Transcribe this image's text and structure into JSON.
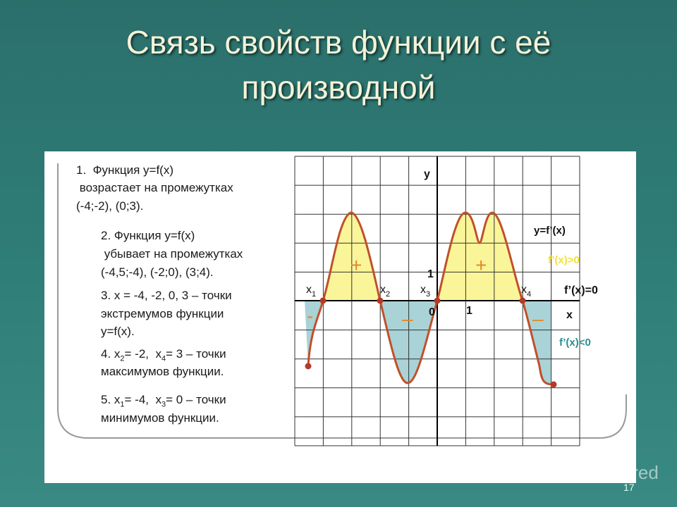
{
  "title": [
    "Связь свойств функции с её",
    "производной"
  ],
  "notes": [
    [
      [
        {
          "text": "1.  Функция y=f(x)"
        }
      ],
      [
        {
          "text": " возрастает на промежутках"
        }
      ],
      [
        {
          "text": "(-4;-2), (0;3)."
        }
      ]
    ],
    [
      [
        {
          "text": "2. Функция y=f(x)"
        }
      ],
      [
        {
          "text": " убывает на промежутках"
        }
      ],
      [
        {
          "text": "(-4,5;-4), (-2;0), (3;4)."
        }
      ]
    ],
    [
      [
        {
          "text": "3. x = -4, -2, 0, 3 – точки"
        }
      ],
      [
        {
          "text": "экстремумов функции"
        }
      ],
      [
        {
          "text": "y=f(x)."
        }
      ]
    ],
    [
      [
        {
          "text": "4. x"
        },
        {
          "sub": "2"
        },
        {
          "text": "= -2,  x"
        },
        {
          "sub": "4"
        },
        {
          "text": "= 3 – точки"
        }
      ],
      [
        {
          "text": "максимумов функции."
        }
      ]
    ],
    [
      [
        {
          "text": "5. x"
        },
        {
          "sub": "1"
        },
        {
          "text": "= -4,  x"
        },
        {
          "sub": "3"
        },
        {
          "text": "= 0 – точки"
        }
      ],
      [
        {
          "text": "минимумов функции."
        }
      ]
    ]
  ],
  "graph": {
    "axis_y": "y",
    "axis_x": "x",
    "unit_y": "1",
    "unit_x": "1",
    "origin": "0",
    "points": [
      {
        "text": "x",
        "sub": "1"
      },
      {
        "text": "x",
        "sub": "2"
      },
      {
        "text": "x",
        "sub": "3"
      },
      {
        "text": "x",
        "sub": "4"
      }
    ],
    "curve_label": "y=f’(x)",
    "positive": "f’(x)>0",
    "zero": "f’(x)=0",
    "negative": "f’(x)<0",
    "signs": [
      "+",
      "+",
      "-",
      "–",
      "–"
    ]
  },
  "watermark": "Shared",
  "slide_number": "17"
}
